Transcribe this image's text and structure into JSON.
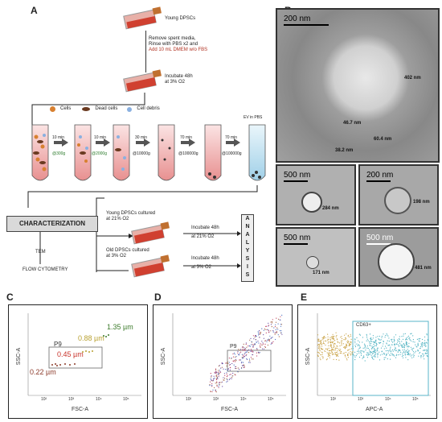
{
  "panels": {
    "a": "A",
    "b": "B",
    "c": "C",
    "d": "D",
    "e": "E"
  },
  "workflow": {
    "young_dpscs": "Young DPSCs",
    "step1": [
      "Remove spent media,",
      "Rinse with PBS x2 and",
      "Add 10 mL DMEM w/o FBS"
    ],
    "incubate": [
      "Incubate 48h",
      "at 3% O2"
    ],
    "legend": {
      "cells": "Cells",
      "dead": "Dead cells",
      "debris": "Cell debris"
    },
    "times": [
      "10 min",
      "10 min",
      "30 min",
      "70 min",
      "70 min"
    ],
    "speeds": [
      "@300g",
      "@2000g",
      "@10000g",
      "@100000g",
      "@100000g"
    ],
    "ev_label": "EV in PBS",
    "characterization": "CHARACTERIZATION",
    "tem": "TEM",
    "flow_cytometry": "FLOW CYTOMETRY",
    "young21": [
      "Young DPSCs cultured",
      "at 21% O2"
    ],
    "old3": [
      "Old DPSCs cultured",
      "at 3% O2"
    ],
    "inc21": [
      "Incubate 48h",
      "at 21% O2"
    ],
    "inc3": [
      "Incubate 48h",
      "at 3% O2"
    ],
    "analysis": [
      "A",
      "N",
      "A",
      "L",
      "Y",
      "S",
      "I",
      "S"
    ]
  },
  "tem": {
    "main": {
      "scale": "200 nm",
      "m1": "402 nm",
      "m2": "46.7 nm",
      "m3": "60.4 nm",
      "m4": "38.2 nm"
    },
    "p1": {
      "scale": "500 nm",
      "m": "284 nm"
    },
    "p2": {
      "scale": "200 nm",
      "m": "198 nm"
    },
    "p3": {
      "scale": "500 nm",
      "m": "171 nm"
    },
    "p4": {
      "scale": "500 nm",
      "m": "481 nm"
    }
  },
  "flow": {
    "c": {
      "xlabel": "FSC-A",
      "ylabel": "SSC-A",
      "gate": "P9",
      "beads": [
        "0.22 µm",
        "0.45 µm",
        "0.88 µm",
        "1.35 µm"
      ]
    },
    "d": {
      "xlabel": "FSC-A",
      "ylabel": "SSC-A",
      "gate": "P9"
    },
    "e": {
      "xlabel": "APC-A",
      "ylabel": "SSC-A",
      "gate": "CD63+"
    },
    "ticks": [
      "10²",
      "10³",
      "10⁴",
      "10⁵"
    ],
    "colors": {
      "bead022": "#8b3a2a",
      "bead045": "#c8322a",
      "bead088": "#b8a030",
      "bead135": "#3b7a2a",
      "gate_e": "#5ab4c8"
    }
  }
}
